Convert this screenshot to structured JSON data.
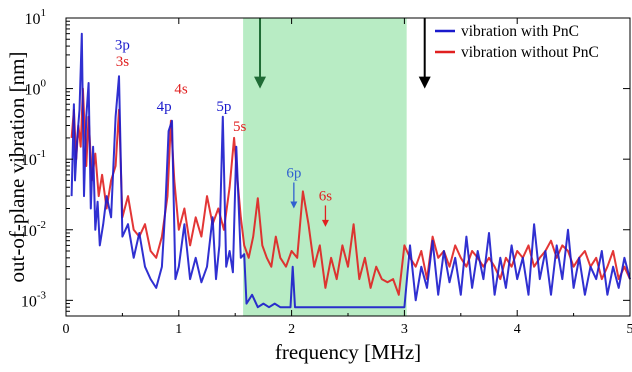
{
  "chart_data": {
    "type": "line",
    "xlabel": "frequency [MHz]",
    "ylabel": "out-of-plane vibration [nm]",
    "xlim": [
      0,
      5
    ],
    "ylim": [
      0.0006,
      10
    ],
    "yscale": "log",
    "xticks": [
      0,
      1,
      2,
      3,
      4,
      5
    ],
    "yticks": [
      {
        "value": 10,
        "base": "10",
        "exp": "1"
      },
      {
        "value": 1,
        "base": "10",
        "exp": "0"
      },
      {
        "value": 0.1,
        "base": "10",
        "exp": "-1"
      },
      {
        "value": 0.01,
        "base": "10",
        "exp": "-2"
      },
      {
        "value": 0.001,
        "base": "10",
        "exp": "-3"
      }
    ],
    "grid": false,
    "legend_position": "top-right",
    "shaded_band": {
      "x": [
        1.57,
        3.02
      ],
      "color": "#b8ecc4"
    },
    "arrows": [
      {
        "x": 1.72,
        "y_top": 10,
        "y_bottom": 1.0,
        "color": "#1f6b35"
      },
      {
        "x": 3.18,
        "y_top": 10,
        "y_bottom": 1.0,
        "color": "#000000"
      }
    ],
    "series": [
      {
        "name": "vibration with PnC",
        "color": "#1a1acc",
        "x": [
          0.05,
          0.07,
          0.08,
          0.1,
          0.12,
          0.14,
          0.16,
          0.18,
          0.2,
          0.22,
          0.24,
          0.26,
          0.28,
          0.3,
          0.33,
          0.36,
          0.4,
          0.44,
          0.47,
          0.5,
          0.55,
          0.6,
          0.65,
          0.7,
          0.75,
          0.8,
          0.85,
          0.88,
          0.91,
          0.94,
          0.97,
          1.0,
          1.05,
          1.1,
          1.15,
          1.2,
          1.25,
          1.3,
          1.33,
          1.36,
          1.39,
          1.42,
          1.45,
          1.48,
          1.51,
          1.55,
          1.58,
          1.6,
          1.65,
          1.7,
          1.75,
          1.8,
          1.85,
          1.9,
          1.95,
          1.99,
          2.01,
          2.03,
          2.1,
          2.2,
          2.3,
          2.4,
          2.5,
          2.6,
          2.7,
          2.8,
          2.9,
          3.0,
          3.05,
          3.1,
          3.15,
          3.2,
          3.25,
          3.3,
          3.35,
          3.4,
          3.45,
          3.5,
          3.55,
          3.6,
          3.65,
          3.7,
          3.75,
          3.8,
          3.85,
          3.9,
          3.95,
          4.0,
          4.05,
          4.1,
          4.15,
          4.2,
          4.25,
          4.3,
          4.35,
          4.4,
          4.45,
          4.5,
          4.55,
          4.6,
          4.65,
          4.7,
          4.75,
          4.8,
          4.85,
          4.9,
          4.95,
          5.0
        ],
        "y": [
          0.03,
          0.6,
          0.05,
          0.2,
          0.5,
          6.0,
          0.03,
          0.4,
          1.2,
          0.02,
          0.15,
          0.01,
          0.025,
          0.006,
          0.012,
          0.03,
          0.015,
          0.4,
          1.5,
          0.008,
          0.012,
          0.004,
          0.009,
          0.003,
          0.002,
          0.0015,
          0.003,
          0.02,
          0.25,
          0.35,
          0.002,
          0.003,
          0.012,
          0.002,
          0.004,
          0.0018,
          0.003,
          0.015,
          0.002,
          0.006,
          0.4,
          0.003,
          0.005,
          0.0025,
          0.15,
          0.004,
          0.0045,
          0.0009,
          0.0012,
          0.0008,
          0.0009,
          0.0008,
          0.0009,
          0.0008,
          0.0008,
          0.0008,
          0.003,
          0.0008,
          0.0008,
          0.0008,
          0.0008,
          0.0008,
          0.0008,
          0.0008,
          0.0008,
          0.0008,
          0.0008,
          0.0008,
          0.006,
          0.001,
          0.003,
          0.0015,
          0.007,
          0.0012,
          0.005,
          0.0018,
          0.004,
          0.0012,
          0.008,
          0.0015,
          0.005,
          0.002,
          0.009,
          0.0012,
          0.004,
          0.0015,
          0.006,
          0.002,
          0.004,
          0.0012,
          0.012,
          0.002,
          0.005,
          0.0012,
          0.006,
          0.002,
          0.01,
          0.0015,
          0.004,
          0.0012,
          0.003,
          0.002,
          0.005,
          0.0012,
          0.003,
          0.0015,
          0.004,
          0.002
        ]
      },
      {
        "name": "vibration without PnC",
        "color": "#e02020",
        "x": [
          0.05,
          0.07,
          0.09,
          0.11,
          0.13,
          0.15,
          0.18,
          0.2,
          0.23,
          0.26,
          0.29,
          0.32,
          0.36,
          0.4,
          0.44,
          0.47,
          0.5,
          0.55,
          0.6,
          0.65,
          0.7,
          0.75,
          0.8,
          0.85,
          0.9,
          0.93,
          0.96,
          1.0,
          1.05,
          1.1,
          1.15,
          1.2,
          1.25,
          1.3,
          1.35,
          1.4,
          1.45,
          1.49,
          1.52,
          1.55,
          1.58,
          1.62,
          1.66,
          1.7,
          1.74,
          1.78,
          1.82,
          1.86,
          1.9,
          1.95,
          2.0,
          2.05,
          2.1,
          2.15,
          2.2,
          2.25,
          2.3,
          2.35,
          2.4,
          2.45,
          2.5,
          2.55,
          2.6,
          2.65,
          2.7,
          2.75,
          2.8,
          2.85,
          2.9,
          2.95,
          3.0,
          3.05,
          3.1,
          3.15,
          3.2,
          3.25,
          3.3,
          3.35,
          3.4,
          3.45,
          3.5,
          3.55,
          3.6,
          3.65,
          3.7,
          3.75,
          3.8,
          3.85,
          3.9,
          3.95,
          4.0,
          4.05,
          4.1,
          4.15,
          4.2,
          4.25,
          4.3,
          4.35,
          4.4,
          4.45,
          4.5,
          4.55,
          4.6,
          4.65,
          4.7,
          4.75,
          4.8,
          4.85,
          4.9,
          4.95,
          5.0
        ],
        "y": [
          0.2,
          0.5,
          0.1,
          0.3,
          0.15,
          1.0,
          0.08,
          0.4,
          0.05,
          0.12,
          0.03,
          0.06,
          0.02,
          0.05,
          0.08,
          0.5,
          0.015,
          0.03,
          0.01,
          0.008,
          0.012,
          0.005,
          0.004,
          0.008,
          0.03,
          0.35,
          0.05,
          0.01,
          0.02,
          0.006,
          0.015,
          0.008,
          0.03,
          0.012,
          0.02,
          0.01,
          0.04,
          0.2,
          0.05,
          0.015,
          0.006,
          0.004,
          0.008,
          0.028,
          0.006,
          0.004,
          0.003,
          0.008,
          0.004,
          0.003,
          0.005,
          0.004,
          0.035,
          0.012,
          0.003,
          0.006,
          0.0015,
          0.004,
          0.002,
          0.006,
          0.003,
          0.012,
          0.002,
          0.004,
          0.0015,
          0.003,
          0.002,
          0.0018,
          0.002,
          0.0012,
          0.006,
          0.004,
          0.003,
          0.005,
          0.002,
          0.008,
          0.004,
          0.005,
          0.003,
          0.006,
          0.004,
          0.003,
          0.005,
          0.004,
          0.003,
          0.004,
          0.003,
          0.002,
          0.004,
          0.003,
          0.005,
          0.004,
          0.006,
          0.003,
          0.004,
          0.005,
          0.007,
          0.004,
          0.006,
          0.005,
          0.003,
          0.004,
          0.005,
          0.003,
          0.004,
          0.002,
          0.003,
          0.005,
          0.002,
          0.003,
          0.002
        ]
      }
    ],
    "annotations": [
      {
        "text": "3p",
        "x": 0.5,
        "y": 3.6,
        "color": "#1a1acc"
      },
      {
        "text": "3s",
        "x": 0.5,
        "y": 2.1,
        "color": "#e02020"
      },
      {
        "text": "4p",
        "x": 0.87,
        "y": 0.48,
        "color": "#1a1acc"
      },
      {
        "text": "4s",
        "x": 1.02,
        "y": 0.85,
        "color": "#e02020"
      },
      {
        "text": "5p",
        "x": 1.4,
        "y": 0.48,
        "color": "#1a1acc"
      },
      {
        "text": "5s",
        "x": 1.54,
        "y": 0.25,
        "color": "#e02020"
      },
      {
        "text": "6p",
        "x": 2.02,
        "y": 0.055,
        "color": "#3060d0",
        "arrow_to": 0.02
      },
      {
        "text": "6s",
        "x": 2.3,
        "y": 0.026,
        "color": "#e02020",
        "arrow_to": 0.011
      }
    ]
  }
}
